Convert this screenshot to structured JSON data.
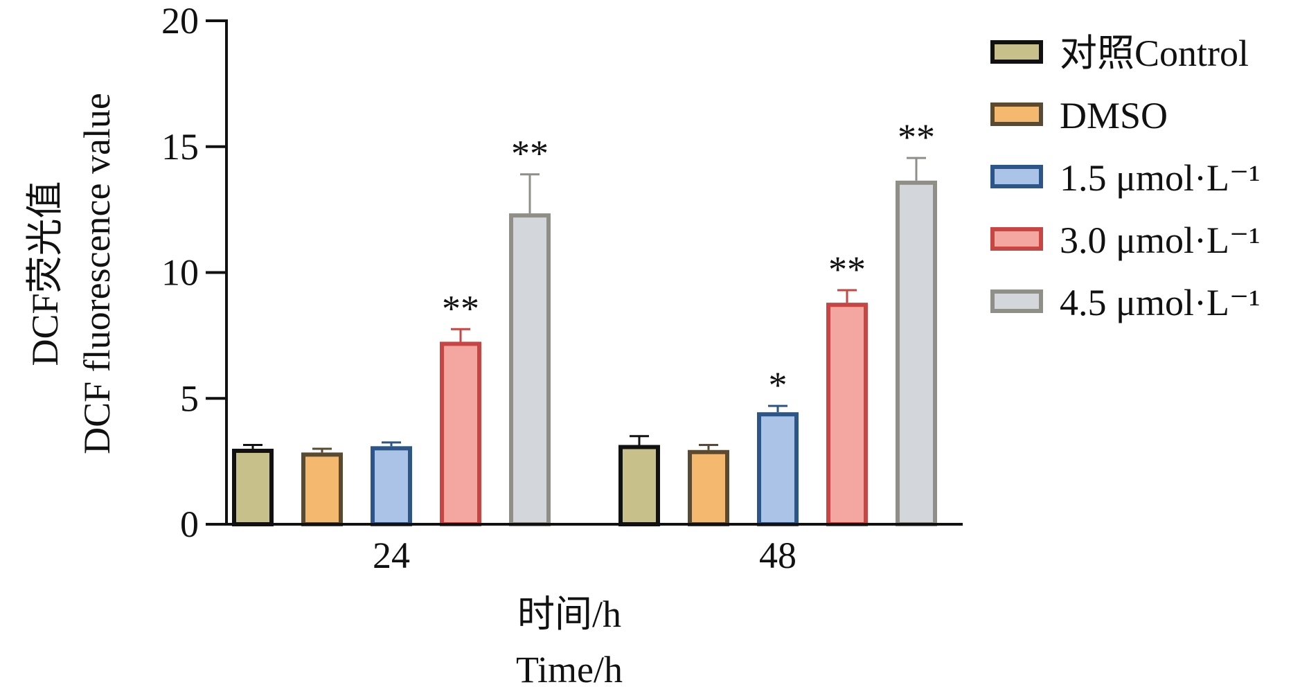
{
  "chart_data": {
    "type": "bar",
    "title": "",
    "ylabel_cn": "DCF荧光值",
    "ylabel_en": "DCF fluorescence value",
    "xlabel_cn": "时间/h",
    "xlabel_en": "Time/h",
    "categories": [
      "24",
      "48"
    ],
    "ylim": [
      0,
      20
    ],
    "yticks": [
      0,
      5,
      10,
      15,
      20
    ],
    "ytick_labels": [
      "0",
      "5",
      "10",
      "15",
      "20"
    ],
    "legend_position": "top-right",
    "series": [
      {
        "name": "对照Control",
        "values": [
          3.0,
          3.15
        ],
        "errors": [
          0.15,
          0.35
        ],
        "sig": [
          "",
          ""
        ],
        "fill": "#c8c08a",
        "stroke": "#111111"
      },
      {
        "name": "DMSO",
        "values": [
          2.85,
          2.95
        ],
        "errors": [
          0.15,
          0.2
        ],
        "sig": [
          "",
          ""
        ],
        "fill": "#f4b96e",
        "stroke": "#5a4a32"
      },
      {
        "name": "1.5 μmol·L⁻¹",
        "values": [
          3.1,
          4.45
        ],
        "errors": [
          0.15,
          0.25
        ],
        "sig": [
          "",
          "*"
        ],
        "fill": "#aac3e6",
        "stroke": "#2d5688"
      },
      {
        "name": "3.0 μmol·L⁻¹",
        "values": [
          7.25,
          8.8
        ],
        "errors": [
          0.5,
          0.5
        ],
        "sig": [
          "**",
          "**"
        ],
        "fill": "#f4a6a0",
        "stroke": "#c74542"
      },
      {
        "name": "4.5 μmol·L⁻¹",
        "values": [
          12.35,
          13.65
        ],
        "errors": [
          1.55,
          0.9
        ],
        "sig": [
          "**",
          "**"
        ],
        "fill": "#d3d6da",
        "stroke": "#8f8f88"
      }
    ]
  }
}
